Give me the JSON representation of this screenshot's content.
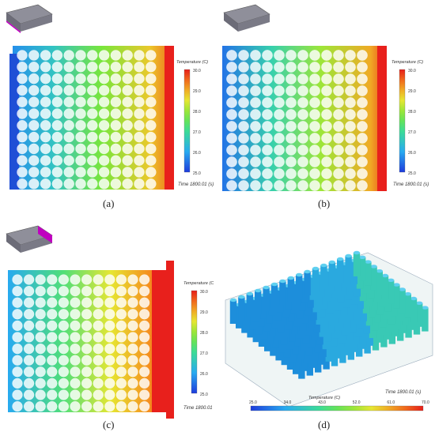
{
  "legend": {
    "title": "Temperature (C)",
    "time": "Time 1800.01 (s)",
    "ticks_small": [
      "30.0",
      "29.0",
      "28.0",
      "27.0",
      "26.0",
      "25.0"
    ],
    "ticks_d": [
      "25.0",
      "34.0",
      "43.0",
      "52.0",
      "61.0",
      "70.0"
    ]
  },
  "captions": {
    "a": "(a)",
    "b": "(b)",
    "c": "(c)",
    "d": "(d)"
  },
  "colors": {
    "hot": "#e8201c",
    "cold": "#1f4fd6",
    "mid_green": "#3fd66b",
    "mid_yellow": "#e3e33a",
    "bg": "#ffffff"
  }
}
